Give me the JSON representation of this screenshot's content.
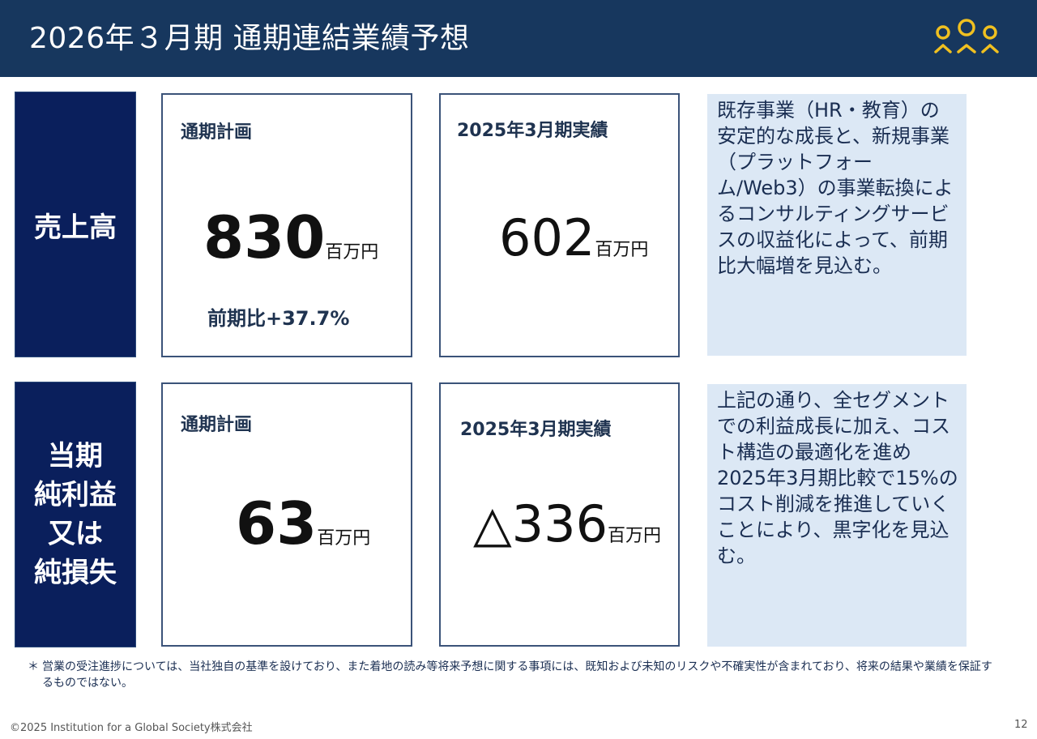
{
  "header": {
    "title": "2026年３月期 通期連結業績予想"
  },
  "logo": {
    "icon": "three-people-logo-icon",
    "color": "#f0c020"
  },
  "sales": {
    "label": "売上高",
    "plan": {
      "label": "通期計画",
      "value": "830",
      "unit": "百万円",
      "yoy": "前期比+37.7%"
    },
    "actual": {
      "label": "2025年3月期実績",
      "value": "602",
      "unit": "百万円"
    },
    "note": "既存事業（HR・教育）の安定的な成長と、新規事業（プラットフォーム/Web3）の事業転換によるコンサルティングサービスの収益化によって、前期比大幅増を見込む。"
  },
  "net_income": {
    "label_lines": [
      "当期",
      "純利益",
      "又は",
      "純損失"
    ],
    "plan": {
      "label": "通期計画",
      "value": "63",
      "unit": "百万円"
    },
    "actual": {
      "label": "2025年3月期実績",
      "value": "△336",
      "unit": "百万円"
    },
    "note": "上記の通り、全セグメントでの利益成長に加え、コスト構造の最適化を進め2025年3月期比較で15%のコスト削減を推進していくことにより、黒字化を見込む。"
  },
  "footnote": {
    "mark": "＊",
    "text": "営業の受注進捗については、当社独自の基準を設けており、また着地の読み等将来予想に関する事項には、既知および未知のリスクや不確実性が含まれており、将来の結果や業績を保証するものではない。"
  },
  "footer": {
    "copyright": "©2025  Institution for a Global Society株式会社",
    "page": "12"
  }
}
